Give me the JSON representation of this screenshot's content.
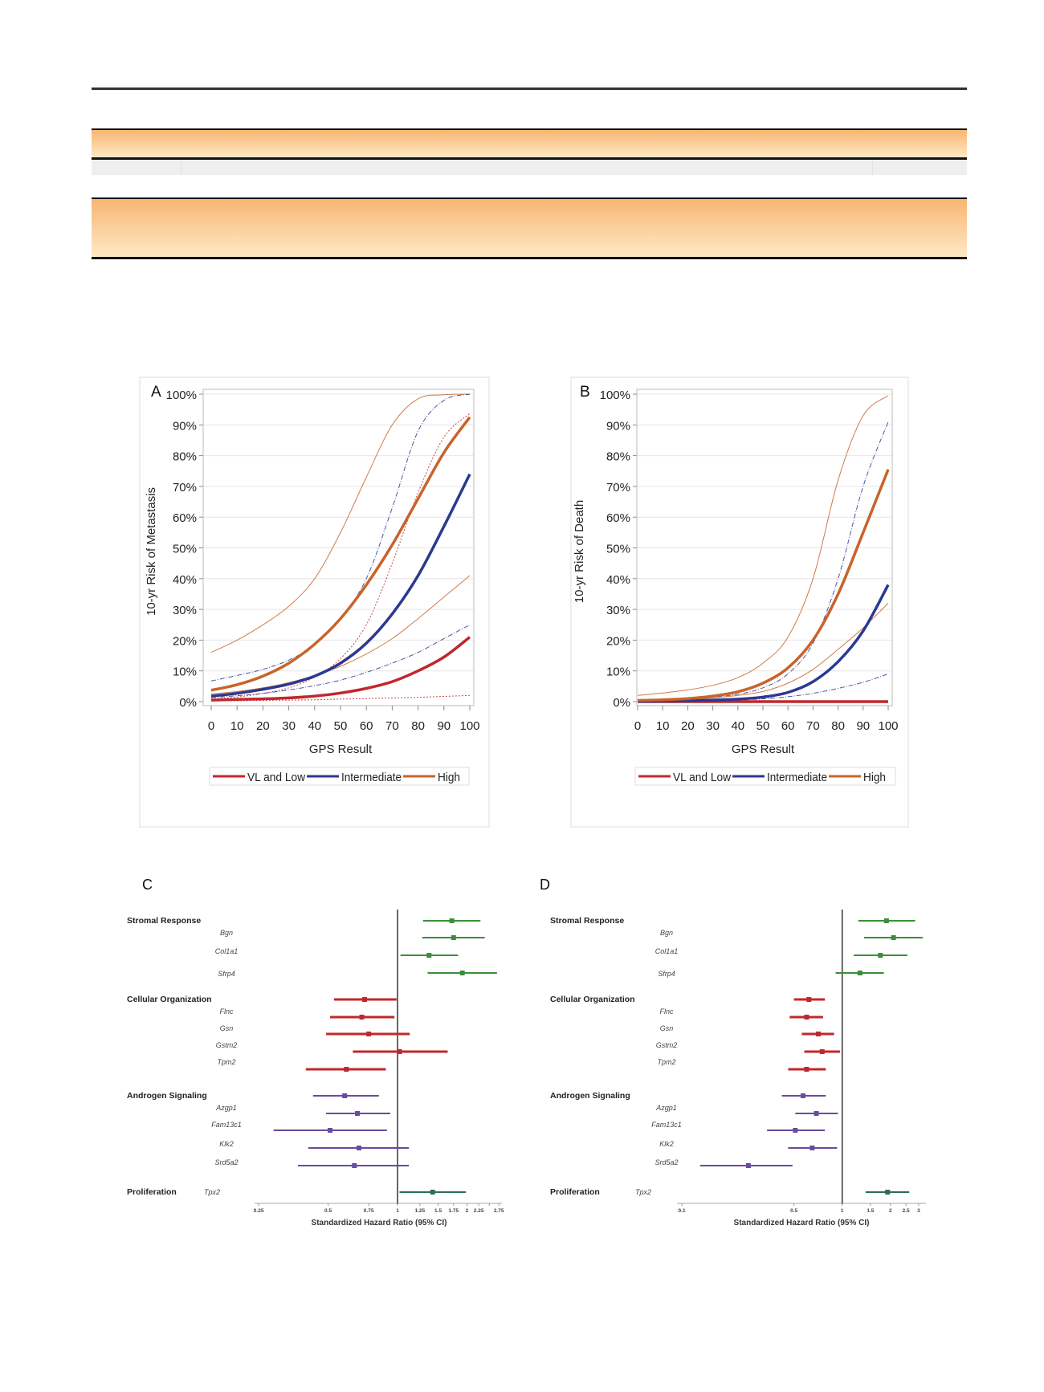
{
  "colors": {
    "header_gradient_top": "#f9b572",
    "header_gradient_bottom": "#fee9c6",
    "vl_low": "#c0282d",
    "intermediate": "#2b3990",
    "high": "#c8642a",
    "stromal": "#3a8f3a",
    "cellular": "#c0282d",
    "androgen": "#6a4aa0",
    "proliferation": "#2f6b5f"
  },
  "chart_data": [
    {
      "panel": "A",
      "type": "line",
      "xlabel": "GPS Result",
      "ylabel": "10-yr Risk of Metastasis",
      "xlim": [
        0,
        100
      ],
      "ylim": [
        0,
        100
      ],
      "xticks": [
        "0",
        "10",
        "20",
        "30",
        "40",
        "50",
        "60",
        "70",
        "80",
        "90",
        "100"
      ],
      "yticks": [
        "0%",
        "10%",
        "20%",
        "30%",
        "40%",
        "50%",
        "60%",
        "70%",
        "80%",
        "90%",
        "100%"
      ],
      "grid": true,
      "legend_position": "bottom",
      "legend": [
        "VL and Low",
        "Intermediate",
        "High"
      ],
      "x": [
        0,
        10,
        20,
        30,
        40,
        50,
        60,
        70,
        80,
        90,
        100
      ],
      "series": [
        {
          "name": "High upper CI",
          "group": "High",
          "style": "ci",
          "values": [
            16,
            20,
            25,
            31,
            40,
            55,
            73,
            90,
            98.5,
            99.8,
            100
          ]
        },
        {
          "name": "High lower CI",
          "group": "High",
          "style": "ci",
          "values": [
            2.5,
            3.3,
            4.5,
            6.2,
            8.5,
            11.5,
            15.5,
            20.5,
            27,
            34,
            41
          ]
        },
        {
          "name": "Intermediate upper CI",
          "group": "Intermediate",
          "style": "ci",
          "values": [
            6.7,
            8.5,
            10.5,
            13.5,
            18.5,
            27,
            40,
            63,
            88,
            98,
            100
          ]
        },
        {
          "name": "Intermediate lower CI",
          "group": "Intermediate",
          "style": "ci",
          "values": [
            1.3,
            1.9,
            2.7,
            3.8,
            5.2,
            7,
            9.5,
            12.5,
            16,
            20.5,
            25
          ]
        },
        {
          "name": "VL and Low upper CI",
          "group": "VL and Low",
          "style": "ci",
          "values": [
            0.8,
            1.5,
            2.7,
            4.5,
            8,
            14,
            25,
            45,
            68,
            86,
            93.7
          ]
        },
        {
          "name": "VL and Low lower CI",
          "group": "VL and Low",
          "style": "ci",
          "values": [
            0.2,
            0.3,
            0.4,
            0.5,
            0.6,
            0.8,
            1.0,
            1.2,
            1.4,
            1.7,
            2.0
          ]
        },
        {
          "name": "VL and Low",
          "group": "VL and Low",
          "style": "main",
          "values": [
            0.5,
            0.7,
            0.9,
            1.2,
            1.8,
            2.8,
            4.3,
            6.5,
            10,
            14.5,
            21
          ]
        },
        {
          "name": "Intermediate",
          "group": "Intermediate",
          "style": "main",
          "values": [
            1.8,
            2.7,
            4,
            5.7,
            8.3,
            12.5,
            19,
            28.5,
            41,
            57,
            74
          ]
        },
        {
          "name": "High",
          "group": "High",
          "style": "main",
          "values": [
            3.7,
            5.5,
            8.3,
            12.5,
            18.7,
            27,
            38,
            51,
            66,
            81,
            92.5
          ]
        }
      ]
    },
    {
      "panel": "B",
      "type": "line",
      "xlabel": "GPS Result",
      "ylabel": "10-yr Risk of Death",
      "xlim": [
        0,
        100
      ],
      "ylim": [
        0,
        100
      ],
      "xticks": [
        "0",
        "10",
        "20",
        "30",
        "40",
        "50",
        "60",
        "70",
        "80",
        "90",
        "100"
      ],
      "yticks": [
        "0%",
        "10%",
        "20%",
        "30%",
        "40%",
        "50%",
        "60%",
        "70%",
        "80%",
        "90%",
        "100%"
      ],
      "grid": true,
      "legend_position": "bottom",
      "legend": [
        "VL and Low",
        "Intermediate",
        "High"
      ],
      "x": [
        0,
        10,
        20,
        30,
        40,
        50,
        60,
        70,
        80,
        90,
        100
      ],
      "series": [
        {
          "name": "High upper CI",
          "group": "High",
          "style": "ci",
          "values": [
            2,
            2.8,
            3.8,
            5.3,
            7.8,
            12.5,
            21,
            40,
            72,
            93,
            99.5
          ]
        },
        {
          "name": "High lower CI",
          "group": "High",
          "style": "ci",
          "values": [
            0.3,
            0.5,
            0.8,
            1.2,
            2,
            3.3,
            6,
            10.5,
            17,
            24,
            32
          ]
        },
        {
          "name": "Intermediate upper CI",
          "group": "Intermediate",
          "style": "ci",
          "values": [
            0.5,
            0.7,
            1,
            1.5,
            2.4,
            4.5,
            9,
            19,
            40,
            70,
            91
          ]
        },
        {
          "name": "Intermediate lower CI",
          "group": "Intermediate",
          "style": "ci",
          "values": [
            0,
            0.1,
            0.2,
            0.3,
            0.5,
            0.9,
            1.6,
            2.7,
            4.3,
            6.3,
            9
          ]
        },
        {
          "name": "VL and Low",
          "group": "VL and Low",
          "style": "main",
          "values": [
            0,
            0,
            0,
            0,
            0,
            0,
            0,
            0,
            0,
            0,
            0
          ]
        },
        {
          "name": "Intermediate",
          "group": "Intermediate",
          "style": "main",
          "values": [
            0.1,
            0.2,
            0.3,
            0.5,
            0.8,
            1.5,
            3,
            6.5,
            13,
            23,
            38
          ]
        },
        {
          "name": "High",
          "group": "High",
          "style": "main",
          "values": [
            0.4,
            0.6,
            1,
            1.8,
            3.2,
            6,
            11,
            20,
            35,
            55,
            75.5
          ]
        }
      ]
    },
    {
      "panel": "C",
      "type": "forest",
      "xscale": "log",
      "xlabel": "Standardized Hazard Ratio (95% CI)",
      "xticks": [
        "0.25",
        "0.5",
        "0.75",
        "1",
        "1.25",
        "1.5",
        "1.75",
        "2",
        "2.25",
        "2.75"
      ],
      "minor_ticks": [
        2.5
      ],
      "reference": 1,
      "rows": [
        {
          "label": "Stromal Response",
          "kind": "group",
          "group": "stromal",
          "hr": 1.72,
          "lo": 1.29,
          "hi": 2.29
        },
        {
          "label": "Bgn",
          "kind": "gene",
          "group": "stromal",
          "hr": 1.75,
          "lo": 1.28,
          "hi": 2.39
        },
        {
          "label": "Col1a1",
          "kind": "gene",
          "group": "stromal",
          "hr": 1.37,
          "lo": 1.03,
          "hi": 1.83
        },
        {
          "label": "Sfrp4",
          "kind": "gene",
          "group": "stromal",
          "hr": 1.91,
          "lo": 1.35,
          "hi": 2.7
        },
        {
          "label": "Cellular Organization",
          "kind": "group",
          "group": "cellular",
          "hr": 0.72,
          "lo": 0.53,
          "hi": 0.99
        },
        {
          "label": "Flnc",
          "kind": "gene",
          "group": "cellular",
          "hr": 0.7,
          "lo": 0.51,
          "hi": 0.97
        },
        {
          "label": "Gsn",
          "kind": "gene",
          "group": "cellular",
          "hr": 0.75,
          "lo": 0.49,
          "hi": 1.13
        },
        {
          "label": "Gstm2",
          "kind": "gene",
          "group": "cellular",
          "hr": 1.02,
          "lo": 0.64,
          "hi": 1.65
        },
        {
          "label": "Tpm2",
          "kind": "gene",
          "group": "cellular",
          "hr": 0.6,
          "lo": 0.4,
          "hi": 0.89
        },
        {
          "label": "Androgen Signaling",
          "kind": "group",
          "group": "androgen",
          "hr": 0.59,
          "lo": 0.43,
          "hi": 0.83
        },
        {
          "label": "Azgp1",
          "kind": "gene",
          "group": "androgen",
          "hr": 0.67,
          "lo": 0.49,
          "hi": 0.93
        },
        {
          "label": "Fam13c1",
          "kind": "gene",
          "group": "androgen",
          "hr": 0.51,
          "lo": 0.29,
          "hi": 0.9
        },
        {
          "label": "Klk2",
          "kind": "gene",
          "group": "androgen",
          "hr": 0.68,
          "lo": 0.41,
          "hi": 1.12
        },
        {
          "label": "Srd5a2",
          "kind": "gene",
          "group": "androgen",
          "hr": 0.65,
          "lo": 0.37,
          "hi": 1.12
        },
        {
          "label": "Proliferation",
          "kind": "group",
          "group": "proliferation",
          "gene": "Tpx2",
          "hr": 1.42,
          "lo": 1.02,
          "hi": 1.98
        }
      ]
    },
    {
      "panel": "D",
      "type": "forest",
      "xscale": "log",
      "xlabel": "Standardized Hazard Ratio (95% CI)",
      "xticks": [
        "0.1",
        "0.5",
        "1",
        "1.5",
        "2",
        "2.5",
        "3"
      ],
      "minor_ticks": [],
      "reference": 1,
      "rows": [
        {
          "label": "Stromal Response",
          "kind": "group",
          "group": "stromal",
          "hr": 1.89,
          "lo": 1.26,
          "hi": 2.85
        },
        {
          "label": "Bgn",
          "kind": "gene",
          "group": "stromal",
          "hr": 2.09,
          "lo": 1.37,
          "hi": 3.18
        },
        {
          "label": "Col1a1",
          "kind": "gene",
          "group": "stromal",
          "hr": 1.73,
          "lo": 1.18,
          "hi": 2.55
        },
        {
          "label": "Sfrp4",
          "kind": "gene",
          "group": "stromal",
          "hr": 1.29,
          "lo": 0.91,
          "hi": 1.82
        },
        {
          "label": "Cellular Organization",
          "kind": "group",
          "group": "cellular",
          "hr": 0.62,
          "lo": 0.5,
          "hi": 0.78
        },
        {
          "label": "Flnc",
          "kind": "gene",
          "group": "cellular",
          "hr": 0.6,
          "lo": 0.47,
          "hi": 0.76
        },
        {
          "label": "Gsn",
          "kind": "gene",
          "group": "cellular",
          "hr": 0.71,
          "lo": 0.56,
          "hi": 0.89
        },
        {
          "label": "Gstm2",
          "kind": "gene",
          "group": "cellular",
          "hr": 0.75,
          "lo": 0.58,
          "hi": 0.97
        },
        {
          "label": "Tpm2",
          "kind": "gene",
          "group": "cellular",
          "hr": 0.6,
          "lo": 0.46,
          "hi": 0.79
        },
        {
          "label": "Androgen Signaling",
          "kind": "group",
          "group": "androgen",
          "hr": 0.57,
          "lo": 0.42,
          "hi": 0.79
        },
        {
          "label": "Azgp1",
          "kind": "gene",
          "group": "androgen",
          "hr": 0.69,
          "lo": 0.51,
          "hi": 0.94
        },
        {
          "label": "Fam13c1",
          "kind": "gene",
          "group": "androgen",
          "hr": 0.51,
          "lo": 0.34,
          "hi": 0.78
        },
        {
          "label": "Klk2",
          "kind": "gene",
          "group": "androgen",
          "hr": 0.65,
          "lo": 0.46,
          "hi": 0.93
        },
        {
          "label": "Srd5a2",
          "kind": "gene",
          "group": "androgen",
          "hr": 0.26,
          "lo": 0.13,
          "hi": 0.49
        },
        {
          "label": "Proliferation",
          "kind": "group",
          "group": "proliferation",
          "gene": "Tpx2",
          "hr": 1.92,
          "lo": 1.4,
          "hi": 2.62
        }
      ]
    }
  ]
}
